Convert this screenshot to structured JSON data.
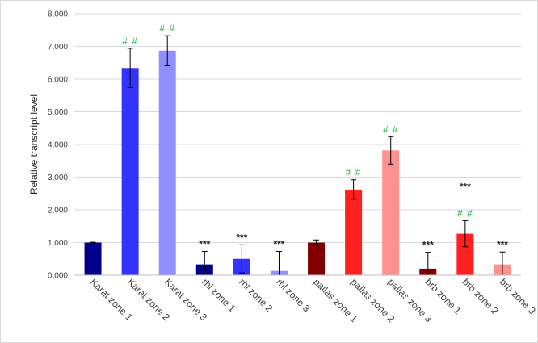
{
  "chart_data": {
    "type": "bar",
    "title": "",
    "xlabel": "",
    "ylabel": "Relative transcript level",
    "ylim": [
      0,
      8000
    ],
    "y_ticks": [
      "0,000",
      "1,000",
      "2,000",
      "3,000",
      "4,000",
      "5,000",
      "6,000",
      "7,000",
      "8,000"
    ],
    "grid": true,
    "legend": "none",
    "categories": [
      "Karat zone 1",
      "Karat zone 2",
      "Karat zone 3",
      "rhl zone 1",
      "rhl zone 2",
      "rhl zone 3",
      "pallas zone 1",
      "pallas zone 2",
      "pallas zone 3",
      "brb zone 1",
      "brb zone 2",
      "brb zone 3"
    ],
    "values": [
      1000,
      6340,
      6870,
      330,
      500,
      130,
      1000,
      2620,
      3820,
      200,
      1270,
      330
    ],
    "errors": [
      10,
      600,
      460,
      400,
      430,
      600,
      80,
      300,
      420,
      500,
      400,
      380
    ],
    "colors": [
      "#00008b",
      "#3333ff",
      "#8f8fff",
      "#00008b",
      "#3333ff",
      "#8f8fff",
      "#800000",
      "#ff2020",
      "#ff9090",
      "#800000",
      "#ff2020",
      "#ff9090"
    ],
    "annotations_above": [
      "",
      "##",
      "##",
      "***",
      "***",
      "***",
      "",
      "##",
      "##",
      "***",
      "***\n##",
      "***"
    ],
    "annotation_colors": {
      "hash": "#2aa84a",
      "star": "#222222"
    }
  }
}
